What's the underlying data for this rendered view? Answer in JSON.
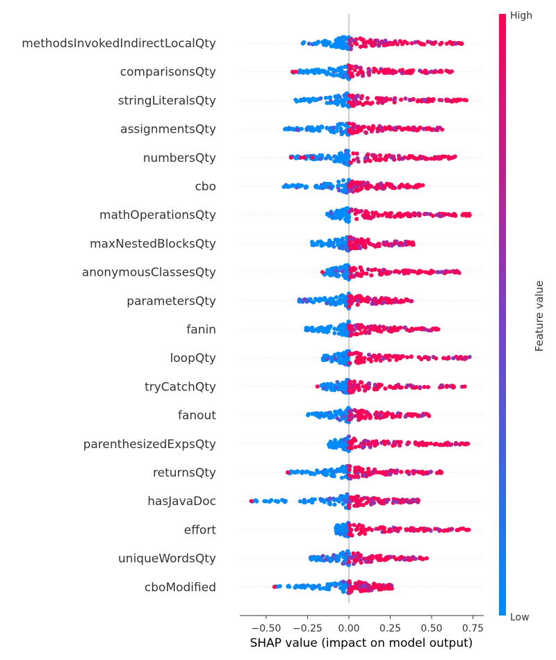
{
  "chart_data": {
    "type": "scatter",
    "subtype": "shap-beeswarm",
    "xlabel": "SHAP value (impact on model output)",
    "xlim": [
      -0.66,
      0.77
    ],
    "xticks": [
      "−0.50",
      "−0.25",
      "0.00",
      "0.25",
      "0.50",
      "0.75"
    ],
    "xtick_values": [
      -0.5,
      -0.25,
      0,
      0.25,
      0.5,
      0.75
    ],
    "colorbar": {
      "label": "Feature value",
      "high": "High",
      "low": "Low"
    },
    "colors": {
      "low": "#008bfb",
      "high": "#ff0052",
      "mid": "#7b3fc2",
      "baseline": "#999999"
    },
    "features": [
      {
        "name": "methodsInvokedIndirectLocalQty",
        "min": -0.28,
        "max": 0.7,
        "outliers": []
      },
      {
        "name": "comparisonsQty",
        "min": -0.34,
        "max": 0.64,
        "outliers": [
          -0.34,
          -0.32
        ]
      },
      {
        "name": "stringLiteralsQty",
        "min": -0.34,
        "max": 0.71,
        "outliers": [
          0.66,
          0.71
        ]
      },
      {
        "name": "assignmentsQty",
        "min": -0.39,
        "max": 0.58,
        "outliers": []
      },
      {
        "name": "numbersQty",
        "min": -0.35,
        "max": 0.65,
        "outliers": [
          -0.35,
          -0.29,
          -0.27,
          -0.22
        ]
      },
      {
        "name": "cbo",
        "min": -0.4,
        "max": 0.46,
        "outliers": []
      },
      {
        "name": "mathOperationsQty",
        "min": -0.14,
        "max": 0.73,
        "outliers": [
          0.73
        ]
      },
      {
        "name": "maxNestedBlocksQty",
        "min": -0.23,
        "max": 0.39,
        "outliers": []
      },
      {
        "name": "anonymousClassesQty",
        "min": -0.16,
        "max": 0.7,
        "outliers": [
          -0.16
        ]
      },
      {
        "name": "parametersQty",
        "min": -0.32,
        "max": 0.38,
        "outliers": []
      },
      {
        "name": "fanin",
        "min": -0.26,
        "max": 0.54,
        "outliers": [
          0.54
        ]
      },
      {
        "name": "loopQty",
        "min": -0.16,
        "max": 0.75,
        "outliers": []
      },
      {
        "name": "tryCatchQty",
        "min": -0.19,
        "max": 0.7,
        "outliers": [
          -0.19,
          0.7
        ]
      },
      {
        "name": "fanout",
        "min": -0.25,
        "max": 0.49,
        "outliers": []
      },
      {
        "name": "parenthesizedExpsQty",
        "min": -0.13,
        "max": 0.72,
        "outliers": [
          0.72
        ]
      },
      {
        "name": "returnsQty",
        "min": -0.37,
        "max": 0.56,
        "outliers": [
          -0.37,
          0.43,
          0.47,
          0.56
        ]
      },
      {
        "name": "hasJavaDoc",
        "min": -0.59,
        "max": 0.42,
        "outliers": [
          -0.59
        ]
      },
      {
        "name": "effort",
        "min": -0.08,
        "max": 0.74,
        "outliers": []
      },
      {
        "name": "uniqueWordsQty",
        "min": -0.24,
        "max": 0.47,
        "outliers": [
          0.47
        ]
      },
      {
        "name": "cboModified",
        "min": -0.45,
        "max": 0.27,
        "outliers": [
          -0.45
        ]
      }
    ]
  }
}
